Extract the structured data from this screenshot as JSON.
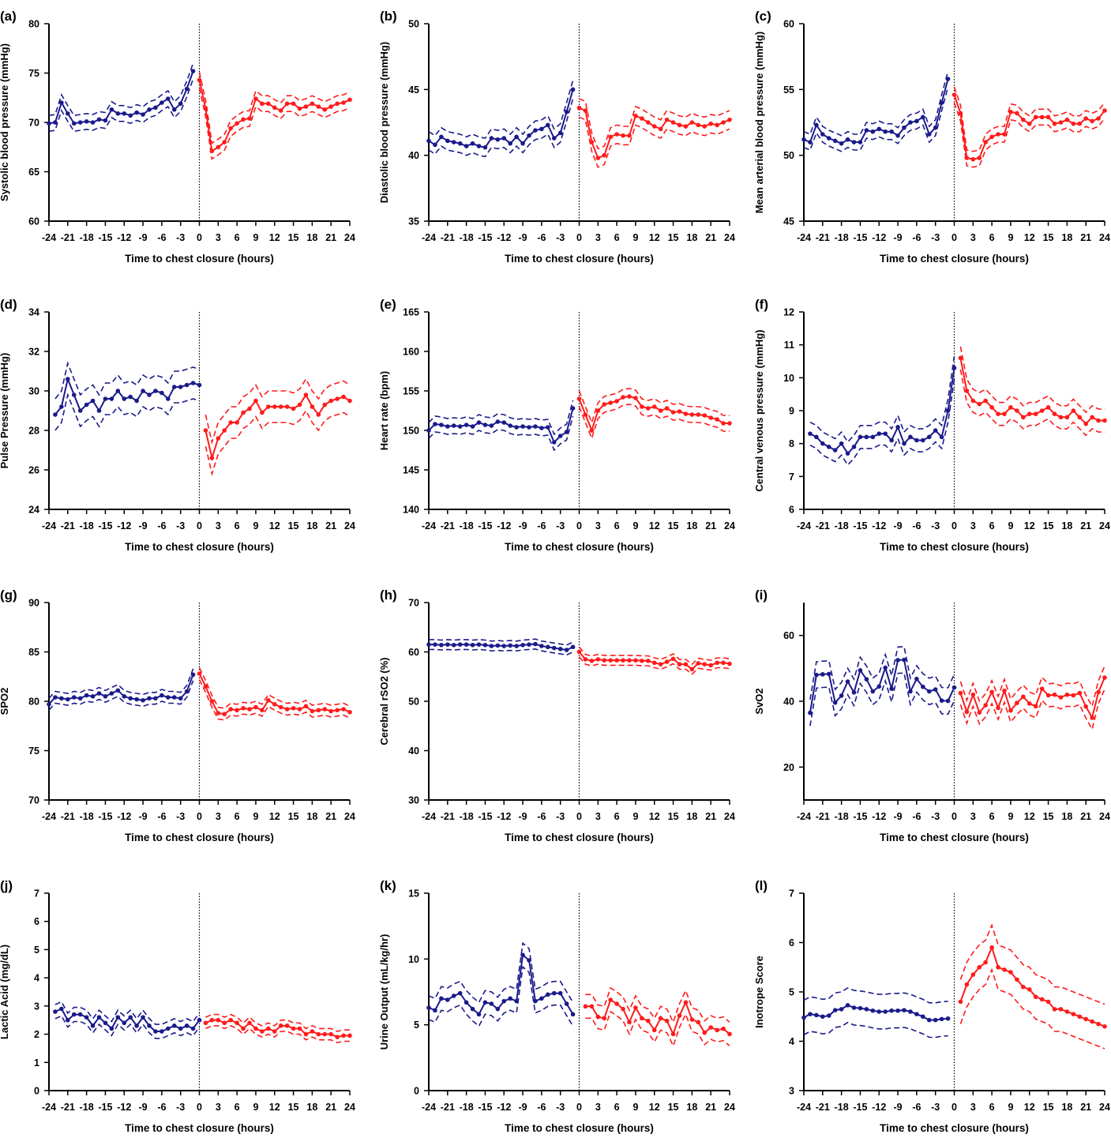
{
  "colors": {
    "pre": "#1a1a8c",
    "post": "#ff1a1a",
    "axis": "#000000"
  },
  "chart_data": [
    {
      "type": "line",
      "panel_label": "(a)",
      "ylabel": "Systolic blood pressure (mmHg)",
      "xlabel": "Time to chest closure (hours)",
      "ylim": [
        60,
        80
      ],
      "yticks": [
        60,
        65,
        70,
        75,
        80
      ],
      "xticks": [
        -24,
        -21,
        -18,
        -15,
        -12,
        -9,
        -6,
        -3,
        0,
        3,
        6,
        9,
        12,
        15,
        18,
        21,
        24
      ],
      "series": [
        {
          "color": "pre",
          "x_start": -24,
          "ci": 0.8,
          "mean": [
            69.9,
            70,
            72,
            70.9,
            69.9,
            70,
            70.1,
            70,
            70.3,
            70.2,
            71.3,
            70.9,
            70.9,
            70.7,
            71,
            70.8,
            71.3,
            71.5,
            72,
            72.4,
            71.3,
            71.9,
            73.4,
            75.2
          ]
        },
        {
          "color": "post",
          "x_start": 0,
          "ci": 0.8,
          "mean": [
            74.3,
            71.4,
            67.1,
            67.5,
            68,
            69.4,
            69.9,
            70.3,
            70.4,
            72.4,
            71.9,
            71.9,
            71.5,
            71.2,
            71.9,
            71.9,
            71.4,
            71.6,
            71.9,
            71.6,
            71.3,
            71.6,
            71.9,
            72,
            72.3
          ]
        }
      ]
    },
    {
      "type": "line",
      "panel_label": "(b)",
      "ylabel": "Diastolic blood pressure (mmHg)",
      "xlabel": "Time to chest closure (hours)",
      "ylim": [
        35,
        50
      ],
      "yticks": [
        35,
        40,
        45,
        50
      ],
      "xticks": [
        -24,
        -21,
        -18,
        -15,
        -12,
        -9,
        -6,
        -3,
        0,
        3,
        6,
        9,
        12,
        15,
        18,
        21,
        24
      ],
      "series": [
        {
          "color": "pre",
          "x_start": -24,
          "ci": 0.7,
          "mean": [
            41.1,
            40.8,
            41.4,
            41.1,
            41,
            40.9,
            40.7,
            40.9,
            40.7,
            40.6,
            41.3,
            41.2,
            41.3,
            40.9,
            41.4,
            40.9,
            41.5,
            41.9,
            42,
            42.3,
            41.3,
            41.7,
            43.3,
            45
          ]
        },
        {
          "color": "post",
          "x_start": 0,
          "ci": 0.7,
          "mean": [
            43.6,
            43.4,
            41,
            39.8,
            40,
            41.4,
            41.6,
            41.5,
            41.5,
            43,
            42.8,
            42.5,
            42.2,
            42,
            42.7,
            42.5,
            42.3,
            42.2,
            42.5,
            42.3,
            42.2,
            42.4,
            42.3,
            42.5,
            42.7
          ]
        }
      ]
    },
    {
      "type": "line",
      "panel_label": "(c)",
      "ylabel": "Mean arterial blood pressure (mmHg)",
      "xlabel": "Time to chest closure (hours)",
      "ylim": [
        45,
        60
      ],
      "yticks": [
        45,
        50,
        55,
        60
      ],
      "xticks": [
        -24,
        -21,
        -18,
        -15,
        -12,
        -9,
        -6,
        -3,
        0,
        3,
        6,
        9,
        12,
        15,
        18,
        21,
        24
      ],
      "series": [
        {
          "color": "pre",
          "x_start": -24,
          "ci": 0.6,
          "mean": [
            51.2,
            51,
            52.3,
            51.6,
            51.3,
            51.1,
            50.9,
            51.2,
            51,
            51,
            51.9,
            51.8,
            52,
            51.8,
            51.8,
            51.5,
            52.1,
            52.5,
            52.6,
            52.9,
            51.6,
            52.1,
            54,
            55.8
          ]
        },
        {
          "color": "post",
          "x_start": 0,
          "ci": 0.6,
          "mean": [
            54.6,
            53.2,
            49.8,
            49.7,
            49.8,
            51,
            51.4,
            51.6,
            51.6,
            53.3,
            53.2,
            52.7,
            52.4,
            52.9,
            52.9,
            52.9,
            52.4,
            52.5,
            52.7,
            52.4,
            52.4,
            52.8,
            52.6,
            52.8,
            53.4
          ]
        }
      ]
    },
    {
      "type": "line",
      "panel_label": "(d)",
      "ylabel": "Pulse Pressure (mmHg)",
      "xlabel": "Time to chest closure (hours)",
      "ylim": [
        24,
        34
      ],
      "yticks": [
        24,
        26,
        28,
        30,
        32,
        34
      ],
      "xticks": [
        -24,
        -21,
        -18,
        -15,
        -12,
        -9,
        -6,
        -3,
        0,
        3,
        6,
        9,
        12,
        15,
        18,
        21,
        24
      ],
      "series": [
        {
          "color": "pre",
          "x_start": -23,
          "ci": 0.8,
          "mean": [
            28.8,
            29.2,
            30.6,
            29.8,
            29,
            29.3,
            29.5,
            29,
            29.6,
            29.6,
            30,
            29.6,
            29.7,
            29.5,
            30,
            29.8,
            30,
            29.9,
            29.6,
            30.2,
            30.2,
            30.3,
            30.4,
            30.3
          ]
        },
        {
          "color": "post",
          "x_start": 1,
          "ci": 0.8,
          "mean": [
            28,
            26.6,
            27.6,
            28,
            28.4,
            28.4,
            28.9,
            29.1,
            29.5,
            28.9,
            29.2,
            29.2,
            29.2,
            29.2,
            29.1,
            29.3,
            29.8,
            29.2,
            28.8,
            29.3,
            29.5,
            29.6,
            29.7,
            29.5
          ]
        }
      ]
    },
    {
      "type": "line",
      "panel_label": "(e)",
      "ylabel": "Heart rate (bpm)",
      "xlabel": "Time to chest closure (hours)",
      "ylim": [
        140,
        165
      ],
      "yticks": [
        140,
        145,
        150,
        155,
        160,
        165
      ],
      "xticks": [
        -24,
        -21,
        -18,
        -15,
        -12,
        -9,
        -6,
        -3,
        0,
        3,
        6,
        9,
        12,
        15,
        18,
        21,
        24
      ],
      "series": [
        {
          "color": "pre",
          "x_start": -24,
          "ci": 1,
          "mean": [
            150,
            150.8,
            150.7,
            150.5,
            150.6,
            150.5,
            150.7,
            150.5,
            151,
            150.7,
            150.6,
            151.1,
            151,
            150.6,
            150.4,
            150.5,
            150.4,
            150.5,
            150.3,
            150.4,
            148.5,
            149.3,
            149.8,
            152.8
          ]
        },
        {
          "color": "post",
          "x_start": 0,
          "ci": 1,
          "mean": [
            154,
            152,
            150,
            152.5,
            153.3,
            153.5,
            153.7,
            154.2,
            154.3,
            154.1,
            153,
            152.8,
            153,
            152.5,
            152.8,
            152.3,
            152.4,
            152.1,
            152,
            152,
            151.9,
            151.6,
            151.4,
            150.9,
            150.9
          ]
        }
      ]
    },
    {
      "type": "line",
      "panel_label": "(f)",
      "ylabel": "Central venous pressure (mmHg)",
      "xlabel": "Time to chest closure (hours)",
      "ylim": [
        6,
        12
      ],
      "yticks": [
        6,
        7,
        8,
        9,
        10,
        11,
        12
      ],
      "xticks": [
        -24,
        -21,
        -18,
        -15,
        -12,
        -9,
        -6,
        -3,
        0,
        3,
        6,
        9,
        12,
        15,
        18,
        21,
        24
      ],
      "series": [
        {
          "color": "pre",
          "x_start": -23,
          "ci": 0.35,
          "mean": [
            8.3,
            8.2,
            8,
            7.9,
            7.8,
            8,
            7.7,
            7.9,
            8.2,
            8.2,
            8.2,
            8.3,
            8.3,
            8.1,
            8.5,
            8,
            8.2,
            8.1,
            8.1,
            8.2,
            8.4,
            8.2,
            9,
            10.3
          ]
        },
        {
          "color": "post",
          "x_start": 1,
          "ci": 0.35,
          "mean": [
            10.6,
            9.6,
            9.3,
            9.2,
            9.3,
            9.1,
            8.9,
            8.9,
            9.1,
            9,
            8.8,
            8.9,
            8.9,
            9,
            9.1,
            8.9,
            8.8,
            8.8,
            9,
            8.8,
            8.6,
            8.8,
            8.7,
            8.7
          ]
        }
      ]
    },
    {
      "type": "line",
      "panel_label": "(g)",
      "ylabel": "SPO2",
      "xlabel": "Time to chest closure (hours)",
      "ylim": [
        70,
        90
      ],
      "yticks": [
        70,
        75,
        80,
        85,
        90
      ],
      "xticks": [
        -24,
        -21,
        -18,
        -15,
        -12,
        -9,
        -6,
        -3,
        0,
        3,
        6,
        9,
        12,
        15,
        18,
        21,
        24
      ],
      "series": [
        {
          "color": "pre",
          "x_start": -24,
          "ci": 0.6,
          "mean": [
            79.7,
            80.4,
            80.3,
            80.2,
            80.4,
            80.3,
            80.6,
            80.5,
            80.8,
            80.5,
            80.8,
            81.1,
            80.5,
            80.3,
            80.2,
            80.1,
            80.3,
            80.3,
            80.6,
            80.4,
            80.4,
            80.3,
            81,
            82.7
          ]
        },
        {
          "color": "post",
          "x_start": 0,
          "ci": 0.6,
          "mean": [
            82.8,
            81.5,
            80,
            78.8,
            78.7,
            79.2,
            79.1,
            79.3,
            79.2,
            79.4,
            79.1,
            80.1,
            79.7,
            79.4,
            79.2,
            79.3,
            79.2,
            79.5,
            79,
            79.1,
            79.2,
            79,
            79.1,
            79.2,
            78.9
          ]
        }
      ]
    },
    {
      "type": "line",
      "panel_label": "(h)",
      "ylabel": "Cerebral rSO2 (%)",
      "xlabel": "Time to chest closure (hours)",
      "ylim": [
        30,
        70
      ],
      "yticks": [
        30,
        40,
        50,
        60,
        70
      ],
      "xticks": [
        -24,
        -21,
        -18,
        -15,
        -12,
        -9,
        -6,
        -3,
        0,
        3,
        6,
        9,
        12,
        15,
        18,
        21,
        24
      ],
      "series": [
        {
          "color": "pre",
          "x_start": -24,
          "ci": 1,
          "mean": [
            61.5,
            61.5,
            61.4,
            61.5,
            61.4,
            61.5,
            61.5,
            61.4,
            61.5,
            61.4,
            61.2,
            61.3,
            61.2,
            61.3,
            61.2,
            61.4,
            61.5,
            61.6,
            61.2,
            61,
            60.8,
            60.6,
            60.4,
            61
          ]
        },
        {
          "color": "post",
          "x_start": 0,
          "ci": 1,
          "mean": [
            60,
            58.5,
            58.2,
            58.5,
            58.3,
            58.3,
            58.3,
            58.3,
            58.3,
            58.3,
            58.2,
            58.2,
            57.8,
            57.5,
            58,
            58.6,
            57.5,
            57.5,
            56.5,
            57.7,
            57.5,
            57.3,
            57.8,
            57.8,
            57.6
          ]
        }
      ]
    },
    {
      "type": "line",
      "panel_label": "(i)",
      "ylabel": "SvO2",
      "xlabel": "Time to chest closure (hours)",
      "ylim": [
        10,
        70
      ],
      "yticks": [
        20,
        40,
        60
      ],
      "xticks": [
        -24,
        -21,
        -18,
        -15,
        -12,
        -9,
        -6,
        -3,
        0,
        3,
        6,
        9,
        12,
        15,
        18,
        21,
        24
      ],
      "series": [
        {
          "color": "pre",
          "x_start": -23,
          "ci": 4,
          "mean": [
            36.5,
            48,
            48.2,
            48.3,
            39.6,
            41.7,
            46,
            42.7,
            49.4,
            46.7,
            43,
            44.5,
            50.2,
            43.8,
            52.5,
            52.6,
            43,
            46.8,
            44.4,
            43,
            43.6,
            40.2,
            40.1,
            44.2
          ]
        },
        {
          "color": "post",
          "x_start": 1,
          "ci": 3.5,
          "mean": [
            42.5,
            36.8,
            42,
            36.6,
            38.8,
            42.8,
            38,
            43.2,
            37.2,
            39.5,
            41.4,
            39.3,
            38.5,
            43.8,
            41.8,
            42,
            41.2,
            42,
            41.8,
            42.5,
            38.4,
            35,
            42.8,
            47.2
          ]
        }
      ]
    },
    {
      "type": "line",
      "panel_label": "(j)",
      "ylabel": "Lactic Acid (mg/dL)",
      "xlabel": "Time to chest closure (hours)",
      "ylim": [
        0,
        7
      ],
      "yticks": [
        0,
        1,
        2,
        3,
        4,
        5,
        6,
        7
      ],
      "xticks": [
        -24,
        -21,
        -18,
        -15,
        -12,
        -9,
        -6,
        -3,
        0,
        3,
        6,
        9,
        12,
        15,
        18,
        21,
        24
      ],
      "series": [
        {
          "color": "pre",
          "x_start": -23,
          "ci": 0.25,
          "mean": [
            2.8,
            2.9,
            2.5,
            2.7,
            2.7,
            2.6,
            2.3,
            2.6,
            2.4,
            2.2,
            2.6,
            2.4,
            2.6,
            2.3,
            2.6,
            2.3,
            2.1,
            2.1,
            2.2,
            2.3,
            2.2,
            2.3,
            2.2,
            2.5
          ]
        },
        {
          "color": "post",
          "x_start": 1,
          "ci": 0.2,
          "mean": [
            2.4,
            2.5,
            2.5,
            2.4,
            2.5,
            2.4,
            2.2,
            2.4,
            2.2,
            2.1,
            2.2,
            2.1,
            2.3,
            2.3,
            2.2,
            2.2,
            2,
            2.1,
            2,
            2,
            2,
            1.9,
            1.95,
            1.95
          ]
        }
      ]
    },
    {
      "type": "line",
      "panel_label": "(k)",
      "ylabel": "Urine Output (mL/kg/hr)",
      "xlabel": "Time to chest closure (hours)",
      "ylim": [
        0,
        15
      ],
      "yticks": [
        0,
        5,
        10,
        15
      ],
      "xticks": [
        -24,
        -21,
        -18,
        -15,
        -12,
        -9,
        -6,
        -3,
        0,
        3,
        6,
        9,
        12,
        15,
        18,
        21,
        24
      ],
      "series": [
        {
          "color": "pre",
          "x_start": -24,
          "ci": 0.9,
          "mean": [
            6.3,
            6.1,
            7,
            6.9,
            7.2,
            7.4,
            6.7,
            6.2,
            5.8,
            6.7,
            6.6,
            6.2,
            6.8,
            7,
            6.8,
            10.3,
            9.9,
            6.8,
            7,
            7.3,
            7.4,
            7.4,
            6.6,
            5.8
          ]
        },
        {
          "color": "post",
          "x_start": 1,
          "ci": 0.9,
          "mean": [
            6.4,
            6.4,
            5.6,
            5.5,
            6.9,
            6.6,
            6.2,
            5.2,
            6.3,
            5.5,
            5.3,
            4.6,
            5.5,
            5.3,
            4.3,
            5.7,
            6.7,
            5.4,
            5.2,
            4.4,
            4.8,
            4.6,
            4.7,
            4.3
          ]
        }
      ]
    },
    {
      "type": "line",
      "panel_label": "(l)",
      "ylabel": "Inotrope Score",
      "xlabel": "Time to chest closure (hours)",
      "ylim": [
        3,
        7
      ],
      "yticks": [
        3,
        4,
        5,
        6,
        7
      ],
      "xticks": [
        -24,
        -21,
        -18,
        -15,
        -12,
        -9,
        -6,
        -3,
        0,
        3,
        6,
        9,
        12,
        15,
        18,
        21,
        24
      ],
      "series": [
        {
          "color": "pre",
          "x_start": -24,
          "ci": 0.35,
          "mean": [
            4.48,
            4.55,
            4.53,
            4.5,
            4.52,
            4.63,
            4.65,
            4.73,
            4.68,
            4.67,
            4.65,
            4.62,
            4.6,
            4.6,
            4.62,
            4.62,
            4.63,
            4.6,
            4.55,
            4.5,
            4.43,
            4.43,
            4.45,
            4.46
          ]
        },
        {
          "color": "post",
          "x_start": 1,
          "ci": 0.45,
          "mean": [
            4.8,
            5.15,
            5.35,
            5.5,
            5.6,
            5.9,
            5.5,
            5.45,
            5.4,
            5.25,
            5.1,
            5.05,
            4.9,
            4.85,
            4.8,
            4.65,
            4.65,
            4.6,
            4.55,
            4.5,
            4.45,
            4.4,
            4.35,
            4.3
          ]
        }
      ]
    }
  ]
}
